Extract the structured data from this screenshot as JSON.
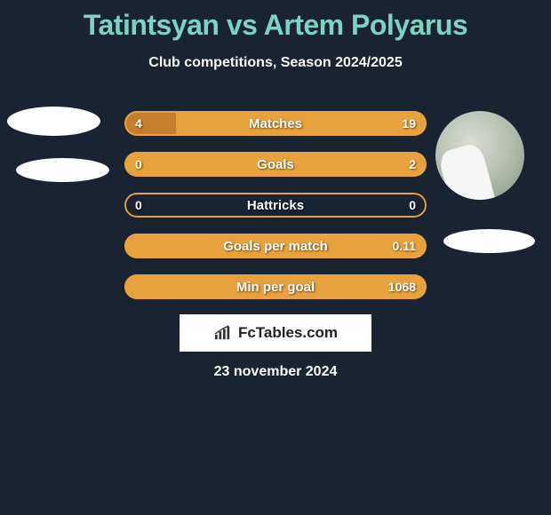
{
  "title": "Tatintsyan vs Artem Polyarus",
  "subtitle": "Club competitions, Season 2024/2025",
  "date": "23 november 2024",
  "logo_text": "FcTables.com",
  "colors": {
    "background": "#1a2332",
    "title": "#7dd3c0",
    "border": "#e8a23d",
    "fill_left": "#c77d2e",
    "fill_right": "#e8a23d",
    "text": "#ffffff"
  },
  "stats": [
    {
      "label": "Matches",
      "left_val": "4",
      "right_val": "19",
      "left_pct": 17,
      "right_pct": 83
    },
    {
      "label": "Goals",
      "left_val": "0",
      "right_val": "2",
      "left_pct": 0,
      "right_pct": 100
    },
    {
      "label": "Hattricks",
      "left_val": "0",
      "right_val": "0",
      "left_pct": 0,
      "right_pct": 0
    },
    {
      "label": "Goals per match",
      "left_val": "",
      "right_val": "0.11",
      "left_pct": 0,
      "right_pct": 100
    },
    {
      "label": "Min per goal",
      "left_val": "",
      "right_val": "1068",
      "left_pct": 0,
      "right_pct": 100
    }
  ]
}
